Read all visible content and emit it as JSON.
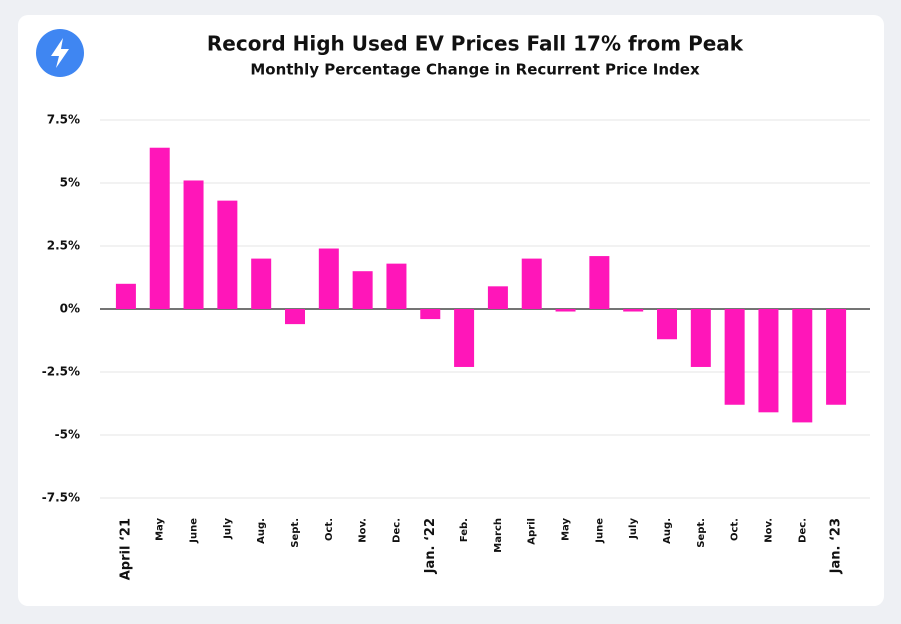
{
  "chart_data": {
    "type": "bar",
    "title": "Record High Used EV Prices Fall 17% from Peak",
    "subtitle": "Monthly Percentage Change in Recurrent Price Index",
    "categories": [
      "April ‘21",
      "May",
      "June",
      "July",
      "Aug.",
      "Sept.",
      "Oct.",
      "Nov.",
      "Dec.",
      "Jan. ‘22",
      "Feb.",
      "March",
      "April",
      "May",
      "June",
      "July",
      "Aug.",
      "Sept.",
      "Oct.",
      "Nov.",
      "Dec.",
      "Jan. ‘23"
    ],
    "values": [
      1.0,
      6.4,
      5.1,
      4.3,
      2.0,
      -0.6,
      2.4,
      1.5,
      1.8,
      -0.4,
      -2.3,
      0.9,
      2.0,
      -0.1,
      2.1,
      -0.1,
      -1.2,
      -2.3,
      -3.8,
      -4.1,
      -4.5,
      -3.8
    ],
    "color": "#ff16b9",
    "ylim": [
      -7.5,
      7.5
    ],
    "yticks": [
      {
        "value": 7.5,
        "label": "7.5%"
      },
      {
        "value": 5,
        "label": "5%"
      },
      {
        "value": 2.5,
        "label": "2.5%"
      },
      {
        "value": 0,
        "label": "0%"
      },
      {
        "value": -2.5,
        "label": "-2.5%"
      },
      {
        "value": -5,
        "label": "-5%"
      },
      {
        "value": -7.5,
        "label": "-7.5%"
      }
    ],
    "grid": true
  }
}
